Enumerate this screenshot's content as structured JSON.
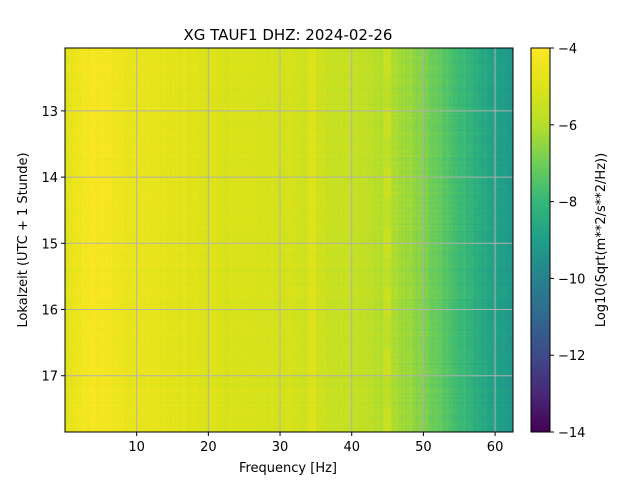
{
  "chart_data": {
    "type": "heatmap",
    "title": "XG TAUF1  DHZ: 2024-02-26",
    "xlabel": "Frequency [Hz]",
    "ylabel": "Lokalzeit (UTC + 1 Stunde)",
    "xlim": [
      0,
      62.5
    ],
    "ylim": [
      12.05,
      17.85
    ],
    "y_inverted": true,
    "grid": true,
    "x_ticks": [
      10,
      20,
      30,
      40,
      50,
      60
    ],
    "y_ticks": [
      13,
      14,
      15,
      16,
      17
    ],
    "colormap": "viridis",
    "colorbar": {
      "label": "Log10(Sqrt(m**2/s**2/Hz))",
      "range": [
        -14,
        -4
      ],
      "ticks": [
        -4,
        -6,
        -8,
        -10,
        -12,
        -14
      ]
    },
    "frequency_profile": {
      "frequencies": [
        0,
        2,
        4,
        6,
        8,
        10,
        15,
        20,
        25,
        30,
        35,
        40,
        45,
        48,
        50,
        52,
        54,
        56,
        58,
        60,
        62.5
      ],
      "log_amplitude": [
        -5.0,
        -4.4,
        -4.2,
        -4.3,
        -4.5,
        -4.6,
        -4.8,
        -5.0,
        -5.1,
        -5.2,
        -5.4,
        -5.6,
        -6.0,
        -6.4,
        -6.7,
        -7.1,
        -7.6,
        -8.0,
        -8.5,
        -8.9,
        -9.2
      ]
    },
    "features": [
      {
        "frequency": 34.5,
        "description": "persistent band"
      },
      {
        "frequency": 45,
        "description": "intermittent band"
      }
    ]
  }
}
